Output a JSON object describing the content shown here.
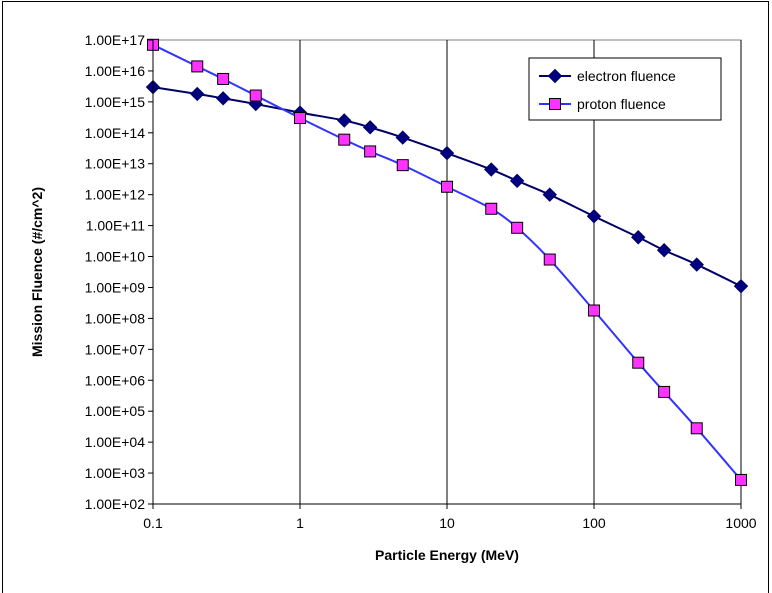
{
  "chart_data": {
    "type": "line",
    "xlabel": "Particle Energy (MeV)",
    "ylabel": "Mission Fluence (#/cm^2)",
    "x_scale": "log",
    "y_scale": "log",
    "xlim": [
      0.1,
      1000
    ],
    "ylim": [
      100,
      1e+17
    ],
    "x_ticks": [
      {
        "value": 0.1,
        "label": "0.1"
      },
      {
        "value": 1,
        "label": "1"
      },
      {
        "value": 10,
        "label": "10"
      },
      {
        "value": 100,
        "label": "100"
      },
      {
        "value": 1000,
        "label": "1000"
      }
    ],
    "y_ticks": [
      {
        "value": 1e+17,
        "label": "1.00E+17"
      },
      {
        "value": 1e+16,
        "label": "1.00E+16"
      },
      {
        "value": 1000000000000000.0,
        "label": "1.00E+15"
      },
      {
        "value": 100000000000000.0,
        "label": "1.00E+14"
      },
      {
        "value": 10000000000000.0,
        "label": "1.00E+13"
      },
      {
        "value": 1000000000000.0,
        "label": "1.00E+12"
      },
      {
        "value": 100000000000.0,
        "label": "1.00E+11"
      },
      {
        "value": 10000000000.0,
        "label": "1.00E+10"
      },
      {
        "value": 1000000000.0,
        "label": "1.00E+09"
      },
      {
        "value": 100000000.0,
        "label": "1.00E+08"
      },
      {
        "value": 10000000.0,
        "label": "1.00E+07"
      },
      {
        "value": 1000000.0,
        "label": "1.00E+06"
      },
      {
        "value": 100000.0,
        "label": "1.00E+05"
      },
      {
        "value": 10000.0,
        "label": "1.00E+04"
      },
      {
        "value": 1000.0,
        "label": "1.00E+03"
      },
      {
        "value": 100,
        "label": "1.00E+02"
      }
    ],
    "grid": {
      "x_major": true,
      "y_major": false
    },
    "legend_position": "top-right",
    "series": [
      {
        "name": "electron fluence",
        "marker": "diamond",
        "line_color": "#000066",
        "marker_color": "#000080",
        "x": [
          0.1,
          0.2,
          0.3,
          0.5,
          1,
          2,
          3,
          5,
          10,
          20,
          30,
          50,
          100,
          200,
          300,
          500,
          1000
        ],
        "y": [
          3000000000000000.0,
          1800000000000000.0,
          1300000000000000.0,
          850000000000000.0,
          450000000000000.0,
          250000000000000.0,
          150000000000000.0,
          70000000000000.0,
          22000000000000.0,
          6500000000000.0,
          2800000000000.0,
          1000000000000.0,
          200000000000.0,
          42000000000.0,
          16000000000.0,
          5500000000.0,
          1100000000.0
        ]
      },
      {
        "name": "proton fluence",
        "marker": "square",
        "line_color": "#3333ff",
        "marker_color": "#ff33ff",
        "x": [
          0.1,
          0.2,
          0.3,
          0.5,
          1,
          2,
          3,
          5,
          10,
          20,
          30,
          50,
          100,
          200,
          300,
          500,
          1000
        ],
        "y": [
          7e+16,
          1.4e+16,
          5500000000000000.0,
          1600000000000000.0,
          300000000000000.0,
          60000000000000.0,
          25000000000000.0,
          9000000000000.0,
          1800000000000.0,
          350000000000.0,
          85000000000.0,
          8000000000.0,
          180000000.0,
          3700000.0,
          420000.0,
          28000.0,
          600
        ]
      }
    ]
  }
}
